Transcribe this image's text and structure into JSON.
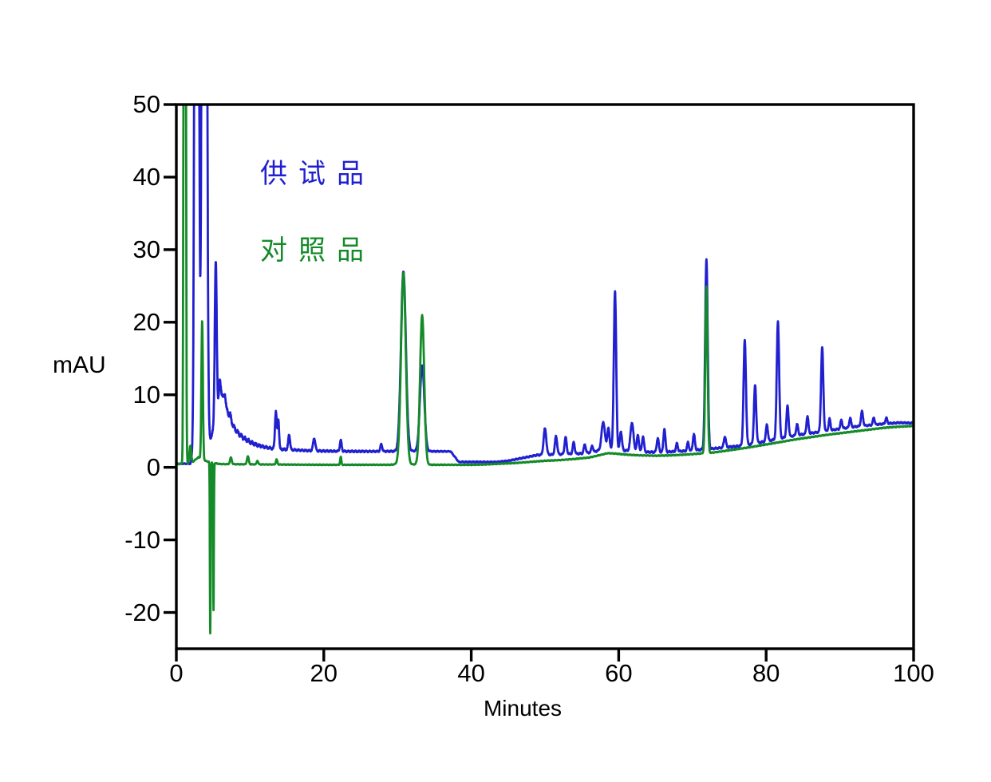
{
  "chart_data": {
    "type": "line",
    "title": "",
    "xlabel": "Minutes",
    "ylabel": "mAU",
    "xlim": [
      0,
      100
    ],
    "ylim": [
      -25,
      50
    ],
    "x_ticks": [
      0,
      20,
      40,
      60,
      80,
      100
    ],
    "y_ticks": [
      50,
      40,
      30,
      20,
      10,
      0,
      -10,
      -20
    ],
    "grid": false,
    "legend_position": "upper-left-inside",
    "axis_color": "#000000",
    "clip_top": 50,
    "series": [
      {
        "name": "test-sample",
        "label": "供试品",
        "color": "#2020d0",
        "description": "blue trace: solvent front clipped at 50 near 2.5-4.2 min, peak 28 at 5.3, decaying baseline to ~2.2, peaks 7.8/6.7 at 13.5/13.9, 4.5 at 15.3, 4.0 at 18.7, 3.7 at 22.3, 27 at 30.8, 14 at 33.3, step to 0.75 at 38-44, rising baseline with peaks 5.4 at 50, cluster 57-66, 24.2 at 59.5, 28.7 at 71.9, 17.5 at 77.1, 11.5 at 78.5, 20 at 81.6, 8.6 at 82.9, 16.5 at 87.6, baseline ends ~6.1 at 100",
        "baseline_anchors": [
          [
            0,
            0.5
          ],
          [
            1.9,
            0.5
          ],
          [
            2.1,
            1.2
          ],
          [
            2.5,
            2.0
          ],
          [
            4.3,
            2.8
          ],
          [
            4.55,
            3.5
          ],
          [
            4.8,
            4.5
          ],
          [
            5.2,
            5.5
          ],
          [
            5.6,
            8.0
          ],
          [
            5.9,
            12.0
          ],
          [
            6.1,
            10.5
          ],
          [
            6.6,
            8.8
          ],
          [
            7.2,
            6.8
          ],
          [
            8.0,
            5.2
          ],
          [
            8.6,
            4.5
          ],
          [
            9.2,
            4.0
          ],
          [
            10,
            3.5
          ],
          [
            11,
            3.05
          ],
          [
            12,
            2.8
          ],
          [
            13,
            2.6
          ],
          [
            14,
            2.5
          ],
          [
            16,
            2.4
          ],
          [
            18,
            2.3
          ],
          [
            20,
            2.25
          ],
          [
            24,
            2.2
          ],
          [
            28,
            2.2
          ],
          [
            32,
            2.25
          ],
          [
            35,
            2.2
          ],
          [
            37.2,
            2.2
          ],
          [
            38.3,
            0.75
          ],
          [
            43.5,
            0.75
          ],
          [
            45,
            0.9
          ],
          [
            47,
            1.3
          ],
          [
            49,
            1.7
          ],
          [
            52,
            1.8
          ],
          [
            55,
            1.9
          ],
          [
            56.5,
            2.1
          ],
          [
            57.5,
            2.4
          ],
          [
            58.8,
            2.6
          ],
          [
            59.8,
            2.4
          ],
          [
            61,
            2.3
          ],
          [
            63,
            2.2
          ],
          [
            64,
            2.1
          ],
          [
            66,
            2.1
          ],
          [
            68,
            2.2
          ],
          [
            70,
            2.3
          ],
          [
            71.5,
            2.5
          ],
          [
            73,
            2.6
          ],
          [
            74,
            2.7
          ],
          [
            76,
            2.9
          ],
          [
            78,
            3.2
          ],
          [
            80,
            3.6
          ],
          [
            82,
            4.0
          ],
          [
            84,
            4.4
          ],
          [
            86,
            4.7
          ],
          [
            88,
            5.0
          ],
          [
            90,
            5.3
          ],
          [
            92,
            5.6
          ],
          [
            94,
            5.8
          ],
          [
            96,
            6.0
          ],
          [
            98,
            6.15
          ],
          [
            100,
            6.1
          ]
        ],
        "peaks": [
          [
            2.76,
            300,
            0.19
          ],
          [
            3.8,
            300,
            0.22
          ],
          [
            5.34,
            22,
            0.13
          ],
          [
            6.6,
            1.2,
            0.1
          ],
          [
            7.3,
            0.8,
            0.1
          ],
          [
            13.5,
            5.2,
            0.12
          ],
          [
            13.84,
            4.0,
            0.1
          ],
          [
            15.3,
            2.1,
            0.12
          ],
          [
            18.7,
            1.7,
            0.15
          ],
          [
            22.3,
            1.5,
            0.12
          ],
          [
            27.8,
            1.0,
            0.12
          ],
          [
            30.8,
            24.8,
            0.33
          ],
          [
            33.34,
            11.8,
            0.3
          ],
          [
            50.0,
            3.6,
            0.18
          ],
          [
            51.5,
            2.5,
            0.15
          ],
          [
            52.8,
            2.3,
            0.14
          ],
          [
            53.9,
            1.6,
            0.13
          ],
          [
            55.4,
            1.2,
            0.13
          ],
          [
            56.4,
            0.9,
            0.12
          ],
          [
            57.9,
            3.8,
            0.22
          ],
          [
            58.6,
            2.8,
            0.15
          ],
          [
            59.5,
            21.8,
            0.16
          ],
          [
            60.3,
            2.6,
            0.14
          ],
          [
            61.8,
            3.9,
            0.2
          ],
          [
            62.6,
            2.2,
            0.14
          ],
          [
            63.3,
            2.1,
            0.13
          ],
          [
            65.3,
            1.9,
            0.14
          ],
          [
            66.2,
            3.2,
            0.13
          ],
          [
            67.9,
            1.1,
            0.12
          ],
          [
            69.4,
            1.2,
            0.12
          ],
          [
            70.2,
            2.2,
            0.14
          ],
          [
            71.9,
            26.2,
            0.17
          ],
          [
            74.4,
            1.5,
            0.14
          ],
          [
            77.1,
            14.4,
            0.16
          ],
          [
            78.5,
            8.0,
            0.15
          ],
          [
            80.1,
            2.3,
            0.13
          ],
          [
            81.6,
            16.2,
            0.16
          ],
          [
            82.9,
            4.3,
            0.14
          ],
          [
            84.2,
            1.5,
            0.13
          ],
          [
            85.6,
            2.4,
            0.13
          ],
          [
            87.6,
            11.6,
            0.15
          ],
          [
            88.6,
            1.6,
            0.12
          ],
          [
            90.2,
            1.2,
            0.12
          ],
          [
            91.4,
            1.3,
            0.12
          ],
          [
            93.0,
            2.0,
            0.14
          ],
          [
            94.6,
            1.0,
            0.12
          ],
          [
            96.3,
            0.8,
            0.12
          ]
        ],
        "noise_anchors": [
          [
            0,
            0.05
          ],
          [
            4.4,
            0.1
          ],
          [
            5.0,
            0.35
          ],
          [
            9,
            0.35
          ],
          [
            12,
            0.22
          ],
          [
            16,
            0.15
          ],
          [
            30,
            0.12
          ],
          [
            36,
            0.08
          ],
          [
            44,
            0.07
          ],
          [
            48,
            0.12
          ],
          [
            58,
            0.14
          ],
          [
            76,
            0.14
          ],
          [
            100,
            0.12
          ]
        ]
      },
      {
        "name": "reference-standard",
        "label": "对照品",
        "color": "#158a28",
        "description": "green trace: clipped spike at ~1.1 min, peak 20 at 3.5, negative spikes to -23 at 4.6 and -19.8 at 5.0, flat baseline ~0.4, peaks 27 at 30.8 and 21 at 33.3, slow rise after 42 min, peak 25 at 71.9, smooth rising baseline ending ~5.7 at 100",
        "baseline_anchors": [
          [
            0,
            0.45
          ],
          [
            2.0,
            0.5
          ],
          [
            2.4,
            0.9
          ],
          [
            3.0,
            1.4
          ],
          [
            3.9,
            0.9
          ],
          [
            5.3,
            0.55
          ],
          [
            6,
            0.45
          ],
          [
            12,
            0.4
          ],
          [
            20,
            0.35
          ],
          [
            29,
            0.35
          ],
          [
            30,
            0.45
          ],
          [
            34.5,
            0.35
          ],
          [
            40,
            0.35
          ],
          [
            42,
            0.4
          ],
          [
            44,
            0.5
          ],
          [
            46,
            0.6
          ],
          [
            48,
            0.75
          ],
          [
            50,
            0.9
          ],
          [
            52,
            1.0
          ],
          [
            54,
            1.15
          ],
          [
            56,
            1.35
          ],
          [
            57.5,
            1.7
          ],
          [
            58.5,
            1.95
          ],
          [
            59.5,
            1.9
          ],
          [
            61,
            1.75
          ],
          [
            63,
            1.65
          ],
          [
            65,
            1.6
          ],
          [
            67,
            1.65
          ],
          [
            69,
            1.75
          ],
          [
            71,
            1.9
          ],
          [
            72.5,
            2.0
          ],
          [
            74,
            2.2
          ],
          [
            76,
            2.5
          ],
          [
            78,
            2.8
          ],
          [
            80,
            3.15
          ],
          [
            82,
            3.5
          ],
          [
            84,
            3.85
          ],
          [
            86,
            4.15
          ],
          [
            88,
            4.45
          ],
          [
            90,
            4.7
          ],
          [
            92,
            4.95
          ],
          [
            94,
            5.2
          ],
          [
            96,
            5.45
          ],
          [
            98,
            5.6
          ],
          [
            100,
            5.7
          ]
        ],
        "peaks": [
          [
            1.14,
            300,
            0.1
          ],
          [
            1.9,
            2.5,
            0.12
          ],
          [
            3.5,
            19.0,
            0.1
          ],
          [
            4.6,
            -23.6,
            0.05
          ],
          [
            5.04,
            -20.3,
            0.05
          ],
          [
            7.4,
            0.9,
            0.12
          ],
          [
            9.7,
            1.1,
            0.12
          ],
          [
            11.0,
            0.5,
            0.1
          ],
          [
            13.6,
            0.7,
            0.1
          ],
          [
            22.3,
            1.1,
            0.08
          ],
          [
            30.8,
            26.4,
            0.32
          ],
          [
            33.34,
            20.6,
            0.28
          ],
          [
            71.9,
            23.0,
            0.15
          ]
        ],
        "noise_anchors": [
          [
            0,
            0.05
          ],
          [
            100,
            0.06
          ]
        ]
      }
    ]
  }
}
